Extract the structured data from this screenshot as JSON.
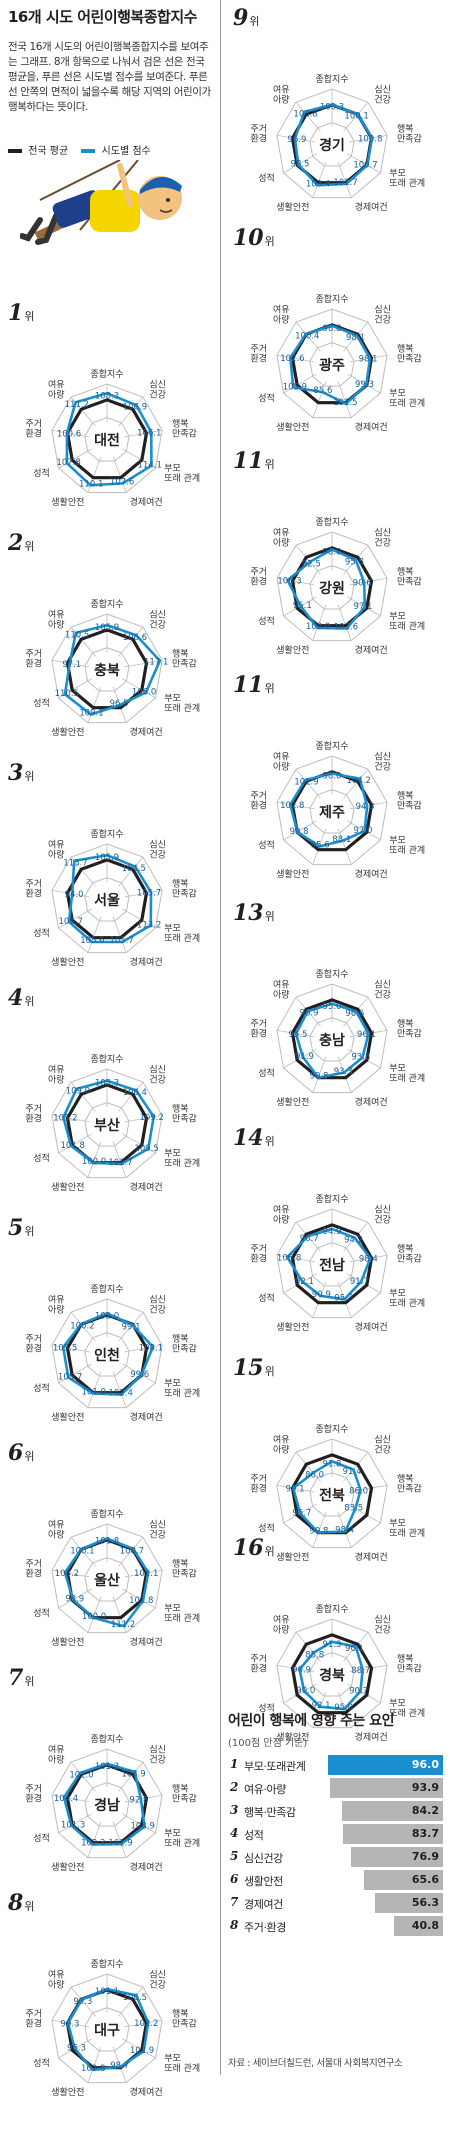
{
  "header": {
    "title": "16개 시도 어린이행복종합지수",
    "description": "전국 16개 시도의 어린이행복종합지수를 보여주는 그래프. 8개 항목으로 나눠서 검은 선은 전국 평균을, 푸른 선은 시도별 점수를 보여준다. 푸른 선 안쪽의 면적이 넓을수록 해당 지역의 어린이가 행복하다는 뜻이다.",
    "legend": [
      {
        "label": "전국 평균",
        "color": "#231f20"
      },
      {
        "label": "시도별 점수",
        "color": "#1a8fd0"
      }
    ]
  },
  "rank_suffix": "위",
  "axis_labels": [
    "종합지수",
    "심신\n건강",
    "행복\n만족감",
    "부모\n또래 관계",
    "경제여건",
    "생활안전",
    "성적",
    "주거\n환경",
    "여유\n아량"
  ],
  "colors": {
    "national": "#231f20",
    "region": "#1a8fd0",
    "grid": "#bdbdbd"
  },
  "chart_data": [
    {
      "type": "radar",
      "rank": "1",
      "region": "대전",
      "values": [
        108.3,
        106.9,
        106.1,
        114.1,
        107.6,
        110.1,
        107.8,
        100.6,
        111.2
      ]
    },
    {
      "type": "radar",
      "rank": "2",
      "region": "충북",
      "values": [
        105.9,
        106.6,
        117.1,
        106.0,
        96.5,
        109.1,
        110.5,
        97.1,
        110.5
      ]
    },
    {
      "type": "radar",
      "rank": "3",
      "region": "서울",
      "values": [
        105.9,
        104.5,
        105.7,
        113.2,
        105.7,
        105.6,
        104.7,
        94.0,
        113.7
      ]
    },
    {
      "type": "radar",
      "rank": "4",
      "region": "부산",
      "values": [
        105.3,
        106.4,
        109.2,
        109.5,
        101.7,
        100.0,
        101.8,
        105.2,
        109.0
      ]
    },
    {
      "type": "radar",
      "rank": "5",
      "region": "인천",
      "values": [
        102.0,
        99.1,
        108.1,
        99.6,
        102.4,
        101.0,
        105.7,
        105.5,
        100.2
      ]
    },
    {
      "type": "radar",
      "rank": "6",
      "region": "울산",
      "values": [
        101.8,
        100.7,
        102.1,
        101.8,
        111.2,
        100.0,
        98.9,
        103.2,
        100.1
      ]
    },
    {
      "type": "radar",
      "rank": "7",
      "region": "경남",
      "values": [
        101.3,
        103.9,
        92.8,
        103.9,
        101.9,
        102.3,
        101.3,
        104.4,
        102.0
      ]
    },
    {
      "type": "radar",
      "rank": "8",
      "region": "대구",
      "values": [
        101.1,
        106.5,
        102.2,
        102.9,
        98.7,
        102.8,
        96.3,
        99.3,
        99.3
      ]
    },
    {
      "type": "radar",
      "rank": "9",
      "region": "경기",
      "values": [
        100.3,
        100.1,
        100.8,
        100.7,
        101.7,
        103.4,
        98.5,
        96.9,
        103.8
      ]
    },
    {
      "type": "radar",
      "rank": "10",
      "region": "광주",
      "values": [
        98.8,
        98.1,
        98.1,
        99.3,
        101.5,
        85.6,
        105.9,
        102.6,
        100.4
      ]
    },
    {
      "type": "radar",
      "rank": "11",
      "region": "강원",
      "values": [
        98.0,
        95.8,
        90.6,
        97.1,
        103.6,
        103.0,
        95.1,
        106.3,
        92.5
      ]
    },
    {
      "type": "radar",
      "rank": "11",
      "region": "제주",
      "values": [
        98.0,
        104.2,
        94.3,
        97.0,
        88.1,
        95.6,
        99.8,
        102.8,
        101.9
      ]
    },
    {
      "type": "radar",
      "rank": "13",
      "region": "충남",
      "values": [
        95.0,
        96.6,
        96.1,
        93.8,
        93.3,
        99.8,
        91.9,
        95.5,
        96.9
      ]
    },
    {
      "type": "radar",
      "rank": "14",
      "region": "전남",
      "values": [
        94.9,
        94.2,
        98.4,
        91.7,
        95.3,
        90.9,
        92.1,
        106.8,
        96.7
      ]
    },
    {
      "type": "radar",
      "rank": "15",
      "region": "전북",
      "values": [
        91.8,
        91.4,
        86.0,
        83.5,
        98.4,
        99.8,
        95.7,
        99.1,
        86.0
      ]
    },
    {
      "type": "radar",
      "rank": "16",
      "region": "경북",
      "values": [
        91.3,
        96.1,
        88.7,
        90.7,
        95.0,
        92.1,
        90.0,
        90.9,
        85.8
      ]
    },
    {
      "type": "bar",
      "title": "어린이 행복에 영향 주는 요인",
      "subtitle": "(100점 만점 기준)",
      "categories": [
        "부모·또래관계",
        "여유·아량",
        "행복·만족감",
        "성적",
        "심신건강",
        "생활안전",
        "경제여건",
        "주거·환경"
      ],
      "values": [
        96.0,
        93.9,
        84.2,
        83.7,
        76.9,
        65.6,
        56.3,
        40.8
      ],
      "highlight_color": "#1a8fd0",
      "bar_color": "#b5b5b5"
    }
  ],
  "factor_ranks": [
    "1",
    "2",
    "3",
    "4",
    "5",
    "6",
    "7",
    "8"
  ],
  "source": "자료 : 세이브더칠드런, 서울대 사회복지연구소"
}
